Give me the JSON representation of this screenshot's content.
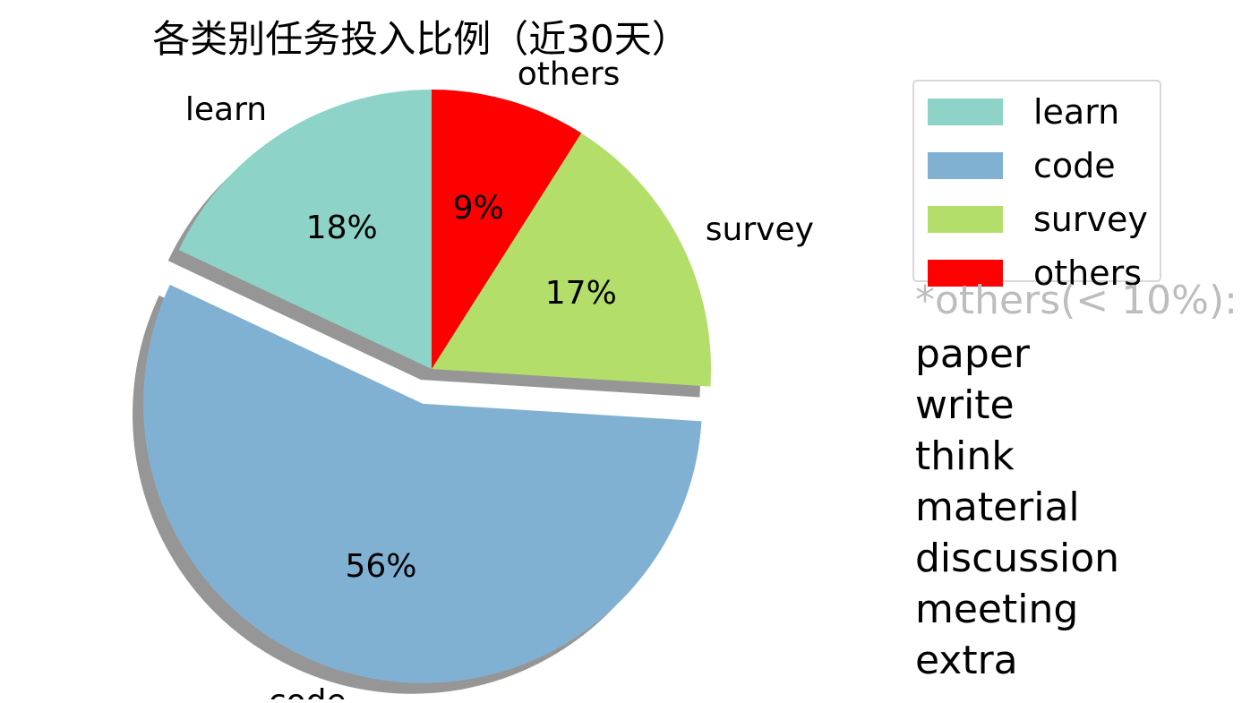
{
  "chart_data": {
    "type": "pie",
    "title": "各类别任务投入比例（近30天）",
    "slices": [
      {
        "label": "learn",
        "value": 18,
        "pct_label": "18%",
        "color": "#8dd3c7"
      },
      {
        "label": "code",
        "value": 56,
        "pct_label": "56%",
        "color": "#80b1d3"
      },
      {
        "label": "survey",
        "value": 17,
        "pct_label": "17%",
        "color": "#b3de69"
      },
      {
        "label": "others",
        "value": 9,
        "pct_label": "9%",
        "color": "#ff0000"
      }
    ],
    "exploded": [
      "code"
    ],
    "shadow": true,
    "legend": {
      "placement": "upper-right",
      "entries": [
        "learn",
        "code",
        "survey",
        "others"
      ]
    },
    "annotation": {
      "header": "*others(< 10%):",
      "items": [
        "paper",
        "write",
        "think",
        "material",
        "discussion",
        "meeting",
        "extra"
      ]
    }
  }
}
